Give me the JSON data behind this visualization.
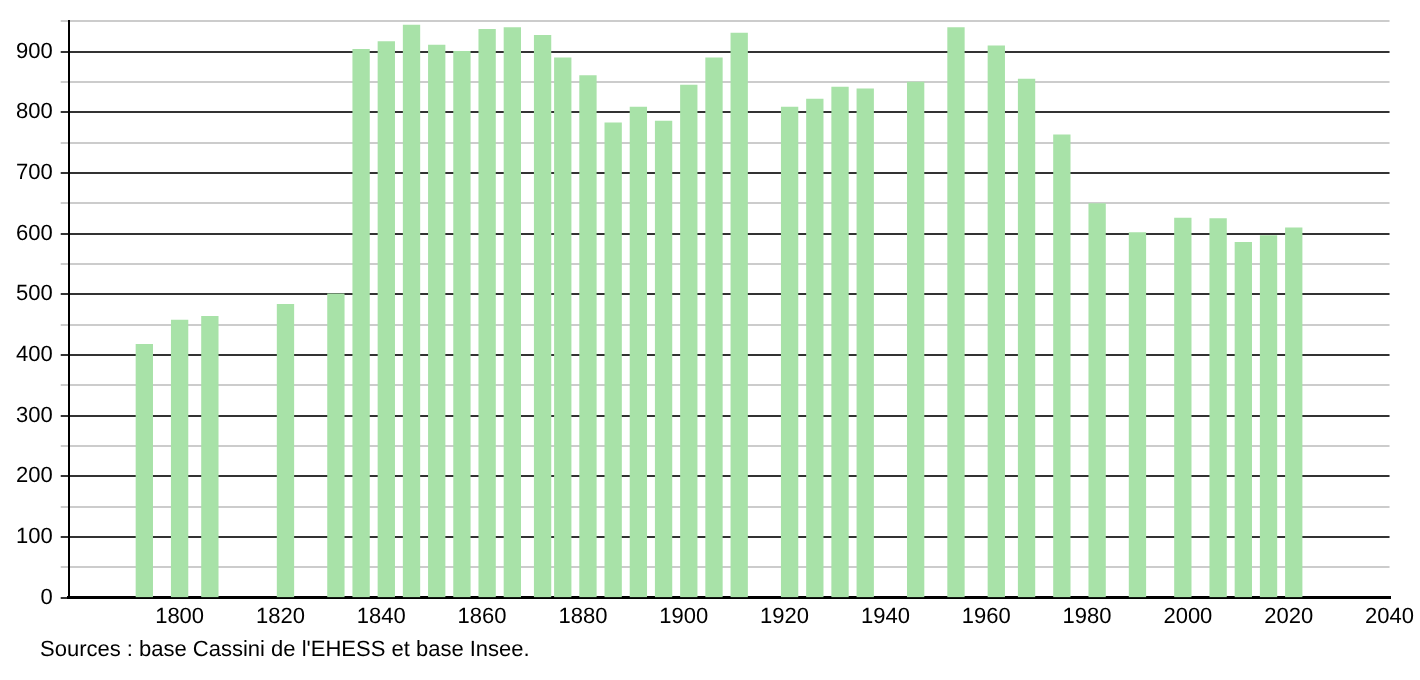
{
  "chart_data": {
    "type": "bar",
    "x": [
      1793,
      1800,
      1806,
      1821,
      1831,
      1836,
      1841,
      1846,
      1851,
      1856,
      1861,
      1866,
      1872,
      1876,
      1881,
      1886,
      1891,
      1896,
      1901,
      1906,
      1911,
      1921,
      1926,
      1931,
      1936,
      1946,
      1954,
      1962,
      1968,
      1975,
      1982,
      1990,
      1999,
      2006,
      2011,
      2016,
      2021
    ],
    "values": [
      417,
      457,
      463,
      483,
      500,
      903,
      916,
      943,
      910,
      900,
      936,
      939,
      926,
      889,
      860,
      782,
      808,
      785,
      844,
      889,
      930,
      808,
      821,
      841,
      838,
      849,
      939,
      909,
      854,
      762,
      649,
      601,
      625,
      624,
      585,
      596,
      609
    ],
    "color": "#a8e2a8",
    "xlim": [
      1778,
      2040
    ],
    "xticks": [
      1800,
      1820,
      1840,
      1860,
      1880,
      1900,
      1920,
      1940,
      1960,
      1980,
      2000,
      2020,
      2040
    ],
    "ylim": [
      0,
      950
    ],
    "yticks": [
      0,
      {
        "value": 50,
        "label": null
      },
      100,
      {
        "value": 150,
        "label": null
      },
      200,
      {
        "value": 250,
        "label": null
      },
      300,
      {
        "value": 350,
        "label": null
      },
      400,
      {
        "value": 450,
        "label": null
      },
      500,
      {
        "value": 550,
        "label": null
      },
      600,
      {
        "value": 650,
        "label": null
      },
      700,
      {
        "value": 750,
        "label": null
      },
      800,
      {
        "value": 850,
        "label": null
      },
      900,
      {
        "value": 950,
        "label": null
      }
    ],
    "grid": "y",
    "legend": false,
    "annotations": [
      "Sources : base Cassini de l'EHESS et base Insee."
    ]
  }
}
